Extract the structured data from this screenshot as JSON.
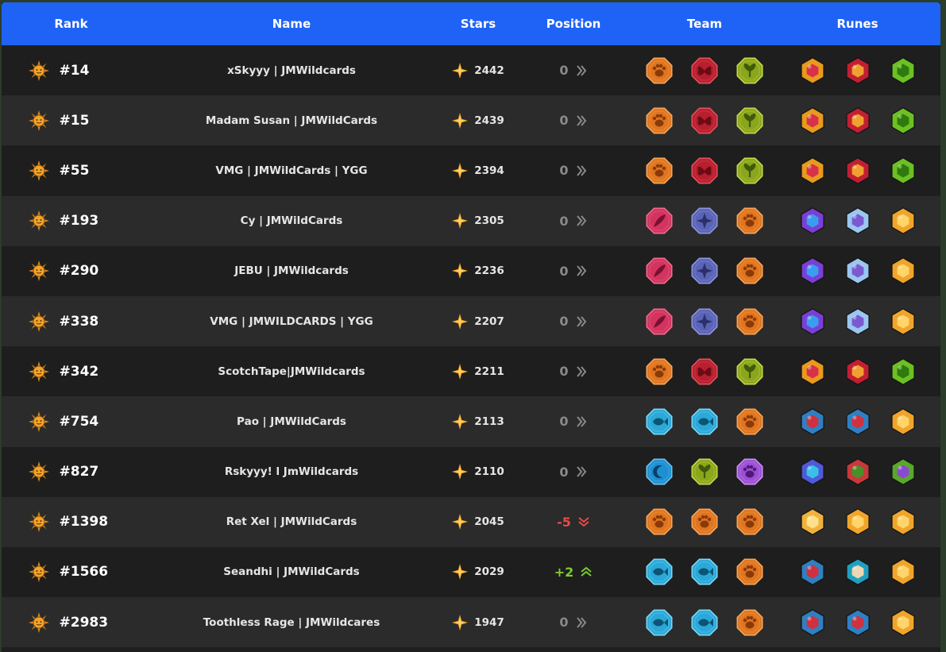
{
  "headers": {
    "rank": "Rank",
    "name": "Name",
    "stars": "Stars",
    "position": "Position",
    "team": "Team",
    "runes": "Runes"
  },
  "colors": {
    "header_bg": "#1f63f6",
    "row_dark": "#1e1e1e",
    "row_light": "#2b2b2b",
    "position_down": "#e84a4a",
    "position_up": "#7ccc2e",
    "position_zero": "#8a8a8a"
  },
  "rows": [
    {
      "rank": "#14",
      "name": "xSkyyy | JMWildcards",
      "stars": "2442",
      "position": "0",
      "trend": "same",
      "team": [
        "paw",
        "butterfly",
        "sprout"
      ],
      "runes": [
        "gold-red",
        "red-stacks",
        "green-gem"
      ]
    },
    {
      "rank": "#15",
      "name": "Madam Susan | JMWildCards",
      "stars": "2439",
      "position": "0",
      "trend": "same",
      "team": [
        "paw",
        "butterfly",
        "sprout"
      ],
      "runes": [
        "gold-red",
        "red-stacks",
        "green-gem"
      ]
    },
    {
      "rank": "#55",
      "name": "VMG | JMWildCards | YGG",
      "stars": "2394",
      "position": "0",
      "trend": "same",
      "team": [
        "paw",
        "butterfly",
        "sprout"
      ],
      "runes": [
        "gold-red",
        "red-stacks",
        "green-gem"
      ]
    },
    {
      "rank": "#193",
      "name": "Cy | JMWildCards",
      "stars": "2305",
      "position": "0",
      "trend": "same",
      "team": [
        "feather",
        "compass",
        "paw"
      ],
      "runes": [
        "purple-eye",
        "ghost",
        "gold-honeycomb"
      ]
    },
    {
      "rank": "#290",
      "name": "JEBU | JMWildcards",
      "stars": "2236",
      "position": "0",
      "trend": "same",
      "team": [
        "feather",
        "compass",
        "paw"
      ],
      "runes": [
        "purple-eye",
        "ghost",
        "gold-honeycomb"
      ]
    },
    {
      "rank": "#338",
      "name": "VMG | JMWILDCARDS | YGG",
      "stars": "2207",
      "position": "0",
      "trend": "same",
      "team": [
        "feather",
        "compass",
        "paw"
      ],
      "runes": [
        "purple-eye",
        "ghost",
        "gold-honeycomb"
      ]
    },
    {
      "rank": "#342",
      "name": "ScotchTape|JMWildcards",
      "stars": "2211",
      "position": "0",
      "trend": "same",
      "team": [
        "paw",
        "butterfly",
        "sprout"
      ],
      "runes": [
        "gold-red",
        "red-stacks",
        "green-gem"
      ]
    },
    {
      "rank": "#754",
      "name": "Pao | JMWildCards",
      "stars": "2113",
      "position": "0",
      "trend": "same",
      "team": [
        "fish",
        "fish",
        "paw"
      ],
      "runes": [
        "blue-red-swirl",
        "blue-red-swirl",
        "gold-honeycomb"
      ]
    },
    {
      "rank": "#827",
      "name": "Rskyyy! l JmWildcards",
      "stars": "2110",
      "position": "0",
      "trend": "same",
      "team": [
        "moon",
        "sprout",
        "purple-paw"
      ],
      "runes": [
        "blue-mask",
        "red-green-swirl",
        "green-purple"
      ]
    },
    {
      "rank": "#1398",
      "name": "Ret Xel | JMWildCards",
      "stars": "2045",
      "position": "-5",
      "trend": "down",
      "team": [
        "paw",
        "paw",
        "paw"
      ],
      "runes": [
        "gold-face",
        "gold-honeycomb",
        "gold-honeycomb"
      ]
    },
    {
      "rank": "#1566",
      "name": "Seandhi | JMWildCards",
      "stars": "2029",
      "position": "+2",
      "trend": "up",
      "team": [
        "fish",
        "fish",
        "paw"
      ],
      "runes": [
        "blue-red-swirl",
        "teal-shell",
        "gold-honeycomb"
      ]
    },
    {
      "rank": "#2983",
      "name": "Toothless Rage | JMWildcares",
      "stars": "1947",
      "position": "0",
      "trend": "same",
      "team": [
        "fish",
        "fish",
        "paw"
      ],
      "runes": [
        "blue-red-swirl",
        "blue-red-swirl",
        "gold-honeycomb"
      ]
    }
  ]
}
